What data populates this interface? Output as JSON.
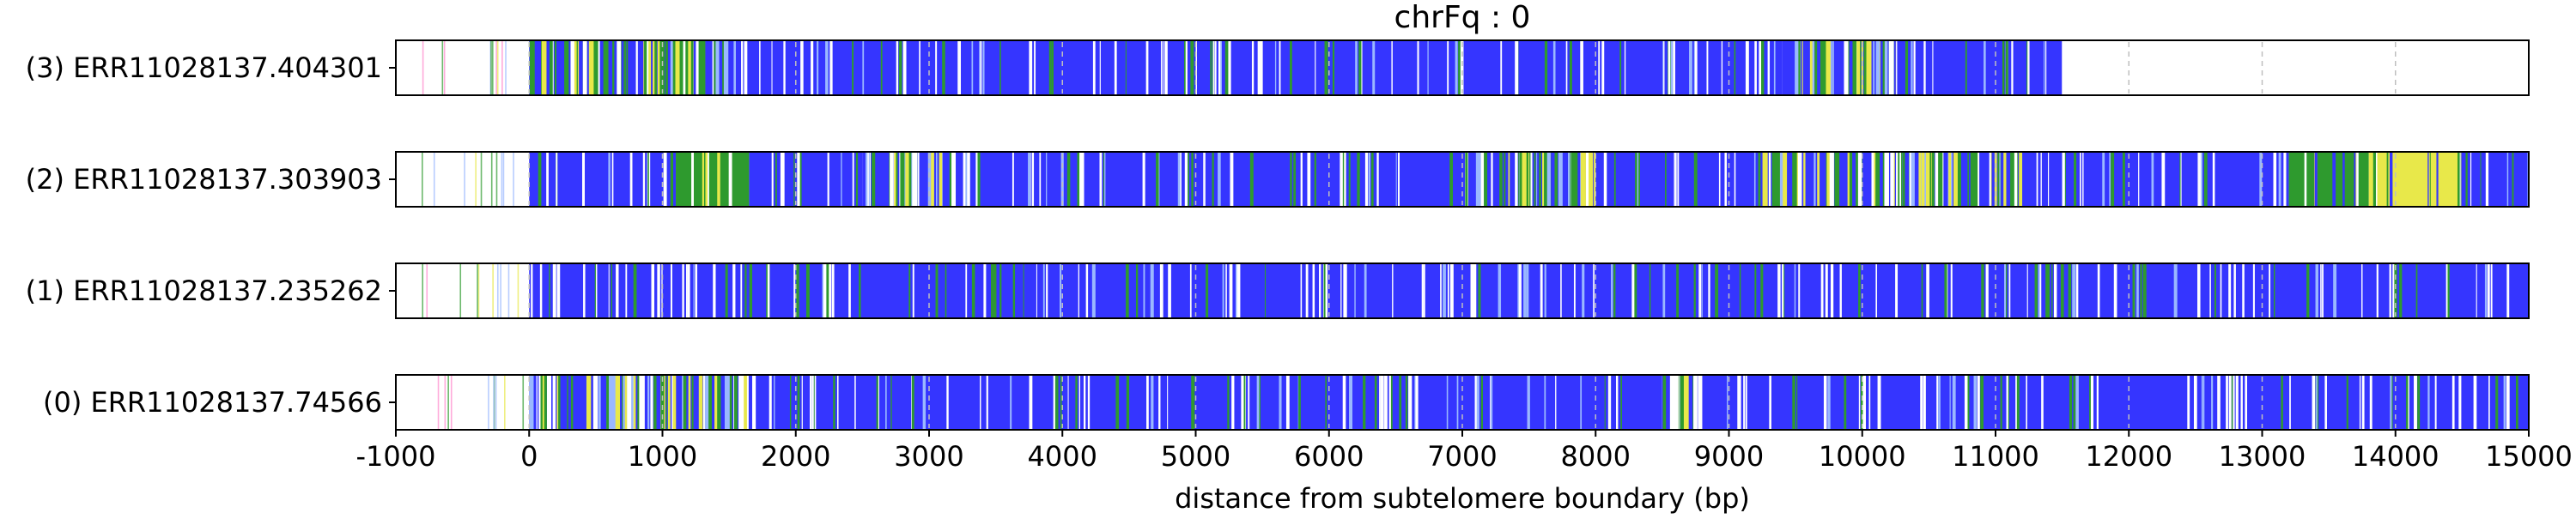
{
  "chart_data": {
    "type": "heatmap",
    "title": "chrFq : 0",
    "xlabel": "distance from subtelomere boundary (bp)",
    "ylabel": "",
    "xlim": [
      -1000,
      15000
    ],
    "x_ticks": [
      -1000,
      0,
      1000,
      2000,
      3000,
      4000,
      5000,
      6000,
      7000,
      8000,
      9000,
      10000,
      11000,
      12000,
      13000,
      14000,
      15000
    ],
    "tick_labels": [
      "-1000",
      "0",
      "1000",
      "2000",
      "3000",
      "4000",
      "5000",
      "6000",
      "7000",
      "8000",
      "9000",
      "10000",
      "11000",
      "12000",
      "13000",
      "14000",
      "15000"
    ],
    "grid": "dashed vertical lines at each 1000 bp",
    "colors": {
      "blue": "#3535ff",
      "green": "#2e9a2e",
      "yellow": "#e8e84a",
      "white": "#ffffff",
      "pink": "#ff88cc",
      "light_blue": "#9ab8ff",
      "grid": "#bfbfbf"
    },
    "tracks": [
      {
        "label": "(3) ERR11028137.404301",
        "read_end_bp": 11500,
        "segments": [
          {
            "start": -1000,
            "end": 0,
            "color": "white"
          },
          {
            "start": 0,
            "end": 1550,
            "color": "mixed"
          },
          {
            "start": 1550,
            "end": 9400,
            "color": "blue"
          },
          {
            "start": 9400,
            "end": 10250,
            "color": "mixed"
          },
          {
            "start": 10250,
            "end": 11500,
            "color": "blue"
          },
          {
            "start": 11500,
            "end": 15000,
            "color": "white"
          }
        ]
      },
      {
        "label": "(2) ERR11028137.303903",
        "read_end_bp": 15000,
        "segments": [
          {
            "start": -1000,
            "end": 0,
            "color": "white"
          },
          {
            "start": 0,
            "end": 1100,
            "color": "blue"
          },
          {
            "start": 1100,
            "end": 1650,
            "color": "green"
          },
          {
            "start": 1650,
            "end": 2500,
            "color": "blue"
          },
          {
            "start": 2500,
            "end": 3200,
            "color": "mixed"
          },
          {
            "start": 3200,
            "end": 7000,
            "color": "blue"
          },
          {
            "start": 7000,
            "end": 8000,
            "color": "mixed"
          },
          {
            "start": 8000,
            "end": 9200,
            "color": "blue"
          },
          {
            "start": 9200,
            "end": 11200,
            "color": "mixed"
          },
          {
            "start": 11200,
            "end": 13200,
            "color": "blue"
          },
          {
            "start": 13200,
            "end": 13800,
            "color": "green"
          },
          {
            "start": 13800,
            "end": 14500,
            "color": "yellow"
          },
          {
            "start": 14500,
            "end": 15000,
            "color": "blue"
          }
        ]
      },
      {
        "label": "(1) ERR11028137.235262",
        "read_end_bp": 15000,
        "segments": [
          {
            "start": -1000,
            "end": 0,
            "color": "white"
          },
          {
            "start": 0,
            "end": 15000,
            "color": "blue"
          }
        ]
      },
      {
        "label": "(0) ERR11028137.74566",
        "read_end_bp": 15000,
        "segments": [
          {
            "start": -1000,
            "end": 0,
            "color": "white"
          },
          {
            "start": 0,
            "end": 1700,
            "color": "mixed"
          },
          {
            "start": 1700,
            "end": 8500,
            "color": "blue"
          },
          {
            "start": 8500,
            "end": 8800,
            "color": "mixed"
          },
          {
            "start": 8800,
            "end": 15000,
            "color": "blue"
          }
        ]
      }
    ]
  }
}
